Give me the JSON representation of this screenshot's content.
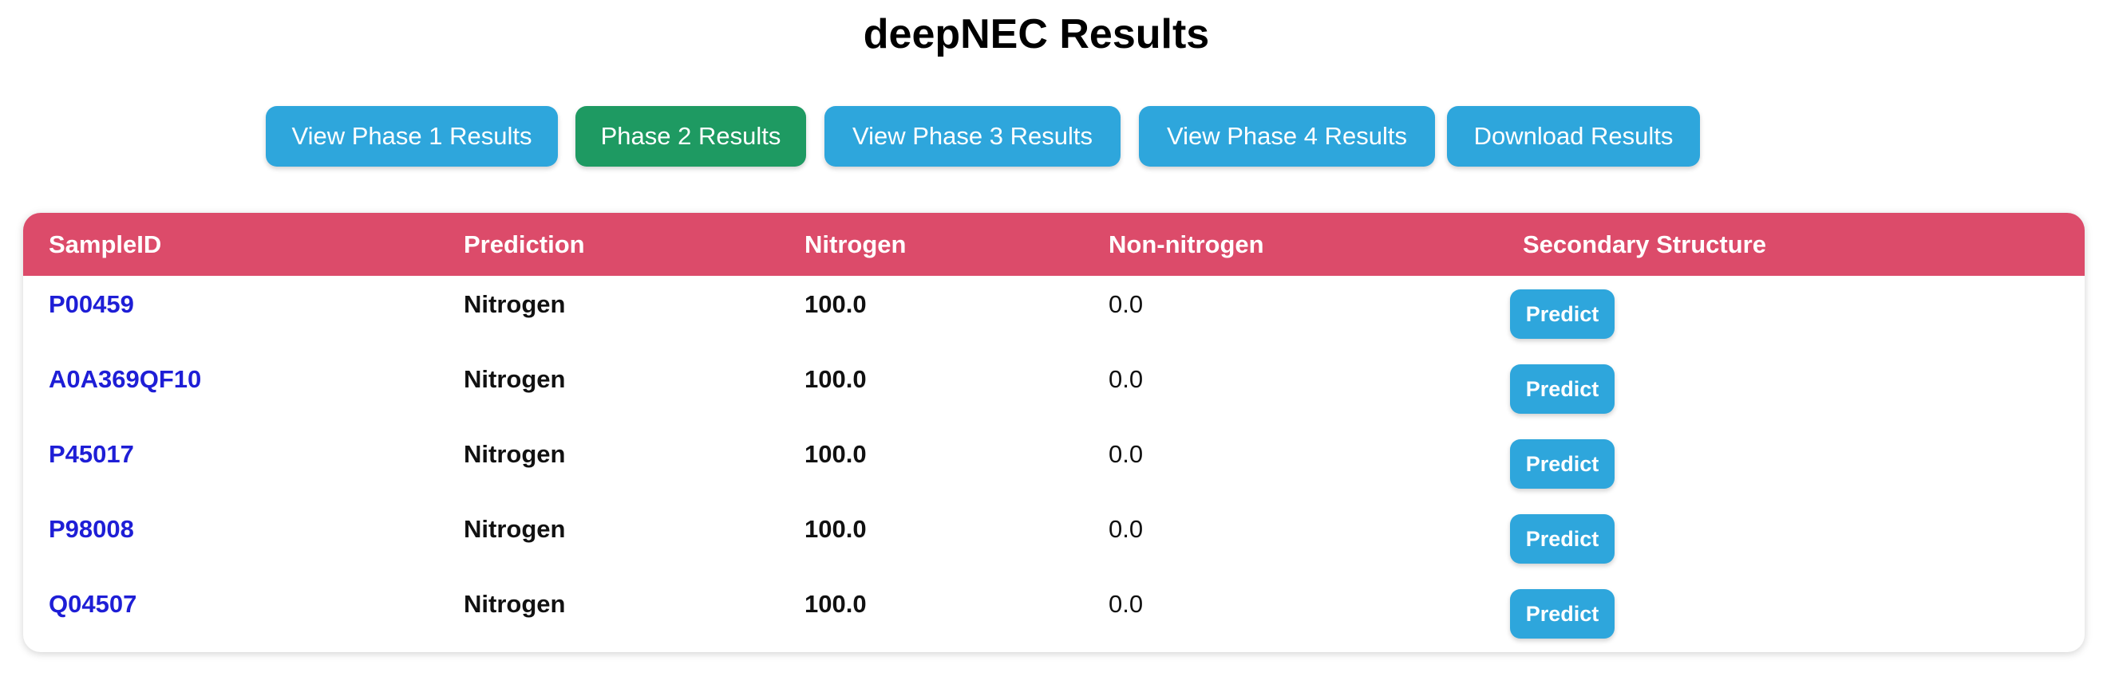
{
  "page": {
    "title": "deepNEC Results"
  },
  "nav": {
    "phase1_label": "View Phase 1 Results",
    "phase2_label": "Phase 2 Results",
    "phase3_label": "View Phase 3 Results",
    "phase4_label": "View Phase 4 Results",
    "download_label": "Download Results"
  },
  "colors": {
    "primary_button": "#2ea6dc",
    "active_button": "#1e9a62",
    "table_header": "#dc4b6a",
    "link": "#1e1ed6"
  },
  "table": {
    "headers": [
      "SampleID",
      "Prediction",
      "Nitrogen",
      "Non-nitrogen",
      "Secondary Structure"
    ],
    "rows": [
      {
        "sample_id": "P00459",
        "prediction": "Nitrogen",
        "nitrogen": "100.0",
        "non_nitrogen": "0.0",
        "action": "Predict"
      },
      {
        "sample_id": "A0A369QF10",
        "prediction": "Nitrogen",
        "nitrogen": "100.0",
        "non_nitrogen": "0.0",
        "action": "Predict"
      },
      {
        "sample_id": "P45017",
        "prediction": "Nitrogen",
        "nitrogen": "100.0",
        "non_nitrogen": "0.0",
        "action": "Predict"
      },
      {
        "sample_id": "P98008",
        "prediction": "Nitrogen",
        "nitrogen": "100.0",
        "non_nitrogen": "0.0",
        "action": "Predict"
      },
      {
        "sample_id": "Q04507",
        "prediction": "Nitrogen",
        "nitrogen": "100.0",
        "non_nitrogen": "0.0",
        "action": "Predict"
      }
    ]
  }
}
